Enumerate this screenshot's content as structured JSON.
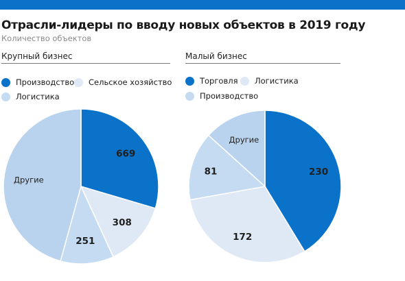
{
  "header": {
    "title": "Отрасли-лидеры по вводу новых объектов в 2019 году",
    "subtitle": "Количество объектов"
  },
  "colors": {
    "top_bar": "#0a72c8",
    "dark_blue": "#0a72c8",
    "light_blue": "#b9d3ee",
    "pale_blue": "#dfe9f6",
    "medium_pale": "#c5dbf1"
  },
  "chart_data": [
    {
      "type": "pie",
      "title": "Крупный бизнес",
      "legend": [
        {
          "label": "Производство",
          "color": "#0a72c8"
        },
        {
          "label": "Сельское хозяйство",
          "color": "#dfe9f6"
        },
        {
          "label": "Логистика",
          "color": "#c5dbf1"
        }
      ],
      "slices": [
        {
          "label": "669",
          "value": 669,
          "color": "#0a72c8"
        },
        {
          "label": "308",
          "value": 308,
          "color": "#dfe9f6"
        },
        {
          "label": "251",
          "value": 251,
          "color": "#c5dbf1"
        },
        {
          "label": "Другие",
          "value": 1035,
          "color": "#b9d3ee"
        }
      ]
    },
    {
      "type": "pie",
      "title": "Малый бизнес",
      "legend": [
        {
          "label": "Торговля",
          "color": "#0a72c8"
        },
        {
          "label": "Логистика",
          "color": "#dfe9f6"
        },
        {
          "label": "Производство",
          "color": "#c5dbf1"
        }
      ],
      "slices": [
        {
          "label": "230",
          "value": 230,
          "color": "#0a72c8"
        },
        {
          "label": "172",
          "value": 172,
          "color": "#dfe9f6"
        },
        {
          "label": "81",
          "value": 81,
          "color": "#c5dbf1"
        },
        {
          "label": "Другие",
          "value": 74,
          "color": "#b9d3ee"
        }
      ]
    }
  ]
}
